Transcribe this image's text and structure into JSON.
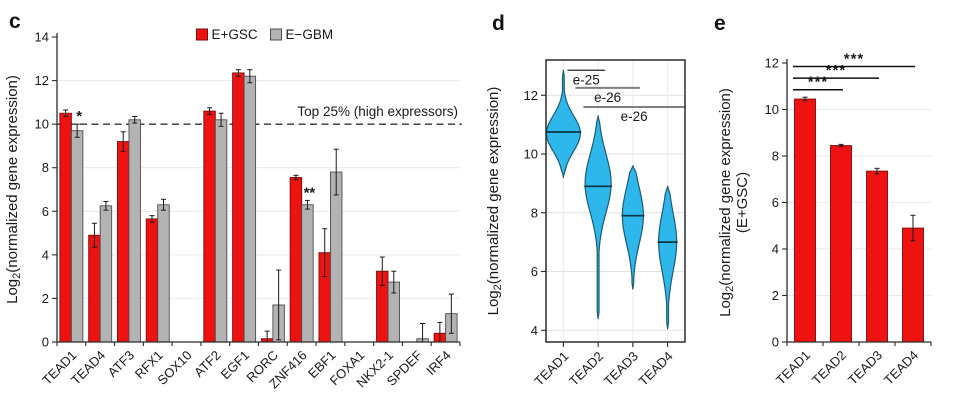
{
  "figure": {
    "background": "#ffffff"
  },
  "chart_data": [
    {
      "id": "c",
      "type": "bar",
      "panel_label": "c",
      "title": "",
      "ylabel": "Log2(normalized gene expression)",
      "ylim": [
        0,
        14
      ],
      "yticks": [
        0,
        2,
        4,
        6,
        8,
        10,
        12,
        14
      ],
      "grid": "horizontal",
      "legend_position": "top",
      "categories": [
        "TEAD1",
        "TEAD4",
        "ATF3",
        "RFX1",
        "SOX10",
        "ATF2",
        "EGF1",
        "RORC",
        "ZNF416",
        "EBF1",
        "FOXA1",
        "NKX2-1",
        "SPDEF",
        "IRF4"
      ],
      "series": [
        {
          "name": "E+GSC",
          "color": "#ee1310",
          "edge": "#7a0b0b",
          "values": [
            10.5,
            4.9,
            9.2,
            5.65,
            0,
            10.6,
            12.35,
            0.15,
            7.55,
            4.1,
            0,
            3.25,
            0,
            0.4
          ],
          "errors": [
            0.15,
            0.55,
            0.45,
            0.15,
            0,
            0.15,
            0.15,
            0.35,
            0.1,
            1.1,
            0,
            0.65,
            0,
            0.5
          ]
        },
        {
          "name": "E−GBM",
          "color": "#b3b3b3",
          "edge": "#4d4d4d",
          "values": [
            9.7,
            6.25,
            10.2,
            6.3,
            0,
            10.2,
            12.2,
            1.7,
            6.3,
            7.8,
            0,
            2.75,
            0.15,
            1.3
          ],
          "errors": [
            0.3,
            0.2,
            0.15,
            0.25,
            0,
            0.3,
            0.3,
            1.6,
            0.2,
            1.05,
            0,
            0.5,
            0.7,
            0.9
          ]
        }
      ],
      "threshold": {
        "y": 10,
        "label": "Top 25% (high expressors)"
      },
      "annotations": [
        {
          "category": "TEAD1",
          "series": 1,
          "text": "*"
        },
        {
          "category": "ZNF416",
          "series": 1,
          "text": "**"
        }
      ]
    },
    {
      "id": "d",
      "type": "violin",
      "panel_label": "d",
      "title": "",
      "ylabel": "Log2(normalized gene expression)",
      "ylim": [
        3.6,
        13.2
      ],
      "yticks": [
        4,
        6,
        8,
        10,
        12
      ],
      "grid": "both",
      "fill": "#2db7ea",
      "edge": "#1d5b77",
      "median_color": "#0e3444",
      "categories": [
        "TEAD1",
        "TEAD2",
        "TEAD3",
        "TEAD4"
      ],
      "violins": [
        {
          "min": 9.2,
          "max": 12.85,
          "median": 10.75,
          "mode": 10.7,
          "spread": 0.6,
          "width": 17
        },
        {
          "min": 4.4,
          "max": 11.3,
          "median": 8.9,
          "mode": 9.0,
          "spread": 1.0,
          "width": 13
        },
        {
          "min": 5.4,
          "max": 9.6,
          "median": 7.9,
          "mode": 7.9,
          "spread": 0.95,
          "width": 10.5
        },
        {
          "min": 4.05,
          "max": 8.9,
          "median": 7.0,
          "mode": 7.0,
          "spread": 1.0,
          "width": 9
        }
      ],
      "comparisons": [
        {
          "from": "TEAD1",
          "to": "TEAD2",
          "label": "e-25",
          "y": 12.85,
          "color": "#222222",
          "width": 1.3
        },
        {
          "from": "TEAD1",
          "to": "TEAD3",
          "label": "e-26",
          "y": 12.25,
          "color": "#7f7f7f",
          "width": 2
        },
        {
          "from": "TEAD1",
          "to": "TEAD4",
          "label": "e-26",
          "y": 11.6,
          "color": "#7f7f7f",
          "width": 2
        }
      ]
    },
    {
      "id": "e",
      "type": "bar",
      "panel_label": "e",
      "title": "",
      "ylabel": "Log2(normalized gene expression)",
      "ylabel2": "(E+GSC)",
      "ylim": [
        0,
        12
      ],
      "yticks": [
        0,
        2,
        4,
        6,
        8,
        10,
        12
      ],
      "grid": "horizontal",
      "categories": [
        "TEAD1",
        "TEAD2",
        "TEAD3",
        "TEAD4"
      ],
      "series": [
        {
          "name": "E+GSC",
          "color": "#ee1310",
          "edge": "#7a0b0b",
          "values": [
            10.45,
            8.45,
            7.35,
            4.9
          ],
          "errors": [
            0.08,
            0.05,
            0.12,
            0.55
          ]
        }
      ],
      "comparisons": [
        {
          "from": "TEAD1",
          "to": "TEAD2",
          "label": "***",
          "y": 10.85,
          "color": "#111111",
          "width": 1.4
        },
        {
          "from": "TEAD1",
          "to": "TEAD3",
          "label": "***",
          "y": 11.35,
          "color": "#111111",
          "width": 1.4
        },
        {
          "from": "TEAD1",
          "to": "TEAD4",
          "label": "***",
          "y": 11.85,
          "color": "#111111",
          "width": 1.4
        }
      ]
    }
  ]
}
